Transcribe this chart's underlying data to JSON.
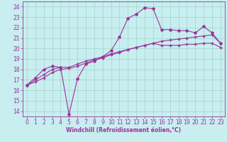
{
  "xlabel": "Windchill (Refroidissement éolien,°C)",
  "background_color": "#c8eef0",
  "grid_color": "#a0d4cc",
  "line_color": "#993399",
  "spine_color": "#993399",
  "xlim": [
    -0.5,
    23.5
  ],
  "ylim": [
    13.5,
    24.5
  ],
  "xticks": [
    0,
    1,
    2,
    3,
    4,
    5,
    6,
    7,
    8,
    9,
    10,
    11,
    12,
    13,
    14,
    15,
    16,
    17,
    18,
    19,
    20,
    21,
    22,
    23
  ],
  "yticks": [
    14,
    15,
    16,
    17,
    18,
    19,
    20,
    21,
    22,
    23,
    24
  ],
  "series1_x": [
    0,
    1,
    2,
    3,
    4,
    5,
    6,
    7,
    8,
    9,
    10,
    11,
    12,
    13,
    14,
    15,
    16,
    17,
    18,
    19,
    20,
    21,
    22,
    23
  ],
  "series1_y": [
    16.5,
    17.2,
    18.0,
    18.3,
    18.2,
    13.7,
    17.1,
    18.5,
    18.8,
    19.2,
    19.8,
    21.1,
    22.9,
    23.3,
    23.9,
    23.8,
    21.8,
    21.8,
    21.7,
    21.7,
    21.5,
    22.1,
    21.5,
    20.5
  ],
  "series2_x": [
    0,
    1,
    2,
    3,
    4,
    5,
    6,
    7,
    8,
    9,
    10,
    11,
    12,
    13,
    14,
    15,
    16,
    17,
    18,
    19,
    20,
    21,
    22,
    23
  ],
  "series2_y": [
    16.5,
    17.0,
    17.5,
    18.0,
    18.2,
    18.2,
    18.5,
    18.8,
    19.0,
    19.2,
    19.5,
    19.7,
    19.9,
    20.1,
    20.3,
    20.5,
    20.7,
    20.8,
    20.9,
    21.0,
    21.1,
    21.2,
    21.3,
    20.5
  ],
  "series3_x": [
    0,
    1,
    2,
    3,
    4,
    5,
    6,
    7,
    8,
    9,
    10,
    11,
    12,
    13,
    14,
    15,
    16,
    17,
    18,
    19,
    20,
    21,
    22,
    23
  ],
  "series3_y": [
    16.5,
    16.8,
    17.2,
    17.7,
    18.0,
    18.1,
    18.3,
    18.6,
    18.9,
    19.1,
    19.4,
    19.6,
    19.9,
    20.1,
    20.3,
    20.5,
    20.3,
    20.3,
    20.3,
    20.4,
    20.4,
    20.5,
    20.5,
    20.1
  ],
  "tick_labelsize": 5.5,
  "xlabel_fontsize": 5.5,
  "marker_size": 2.5,
  "line_width": 0.8
}
